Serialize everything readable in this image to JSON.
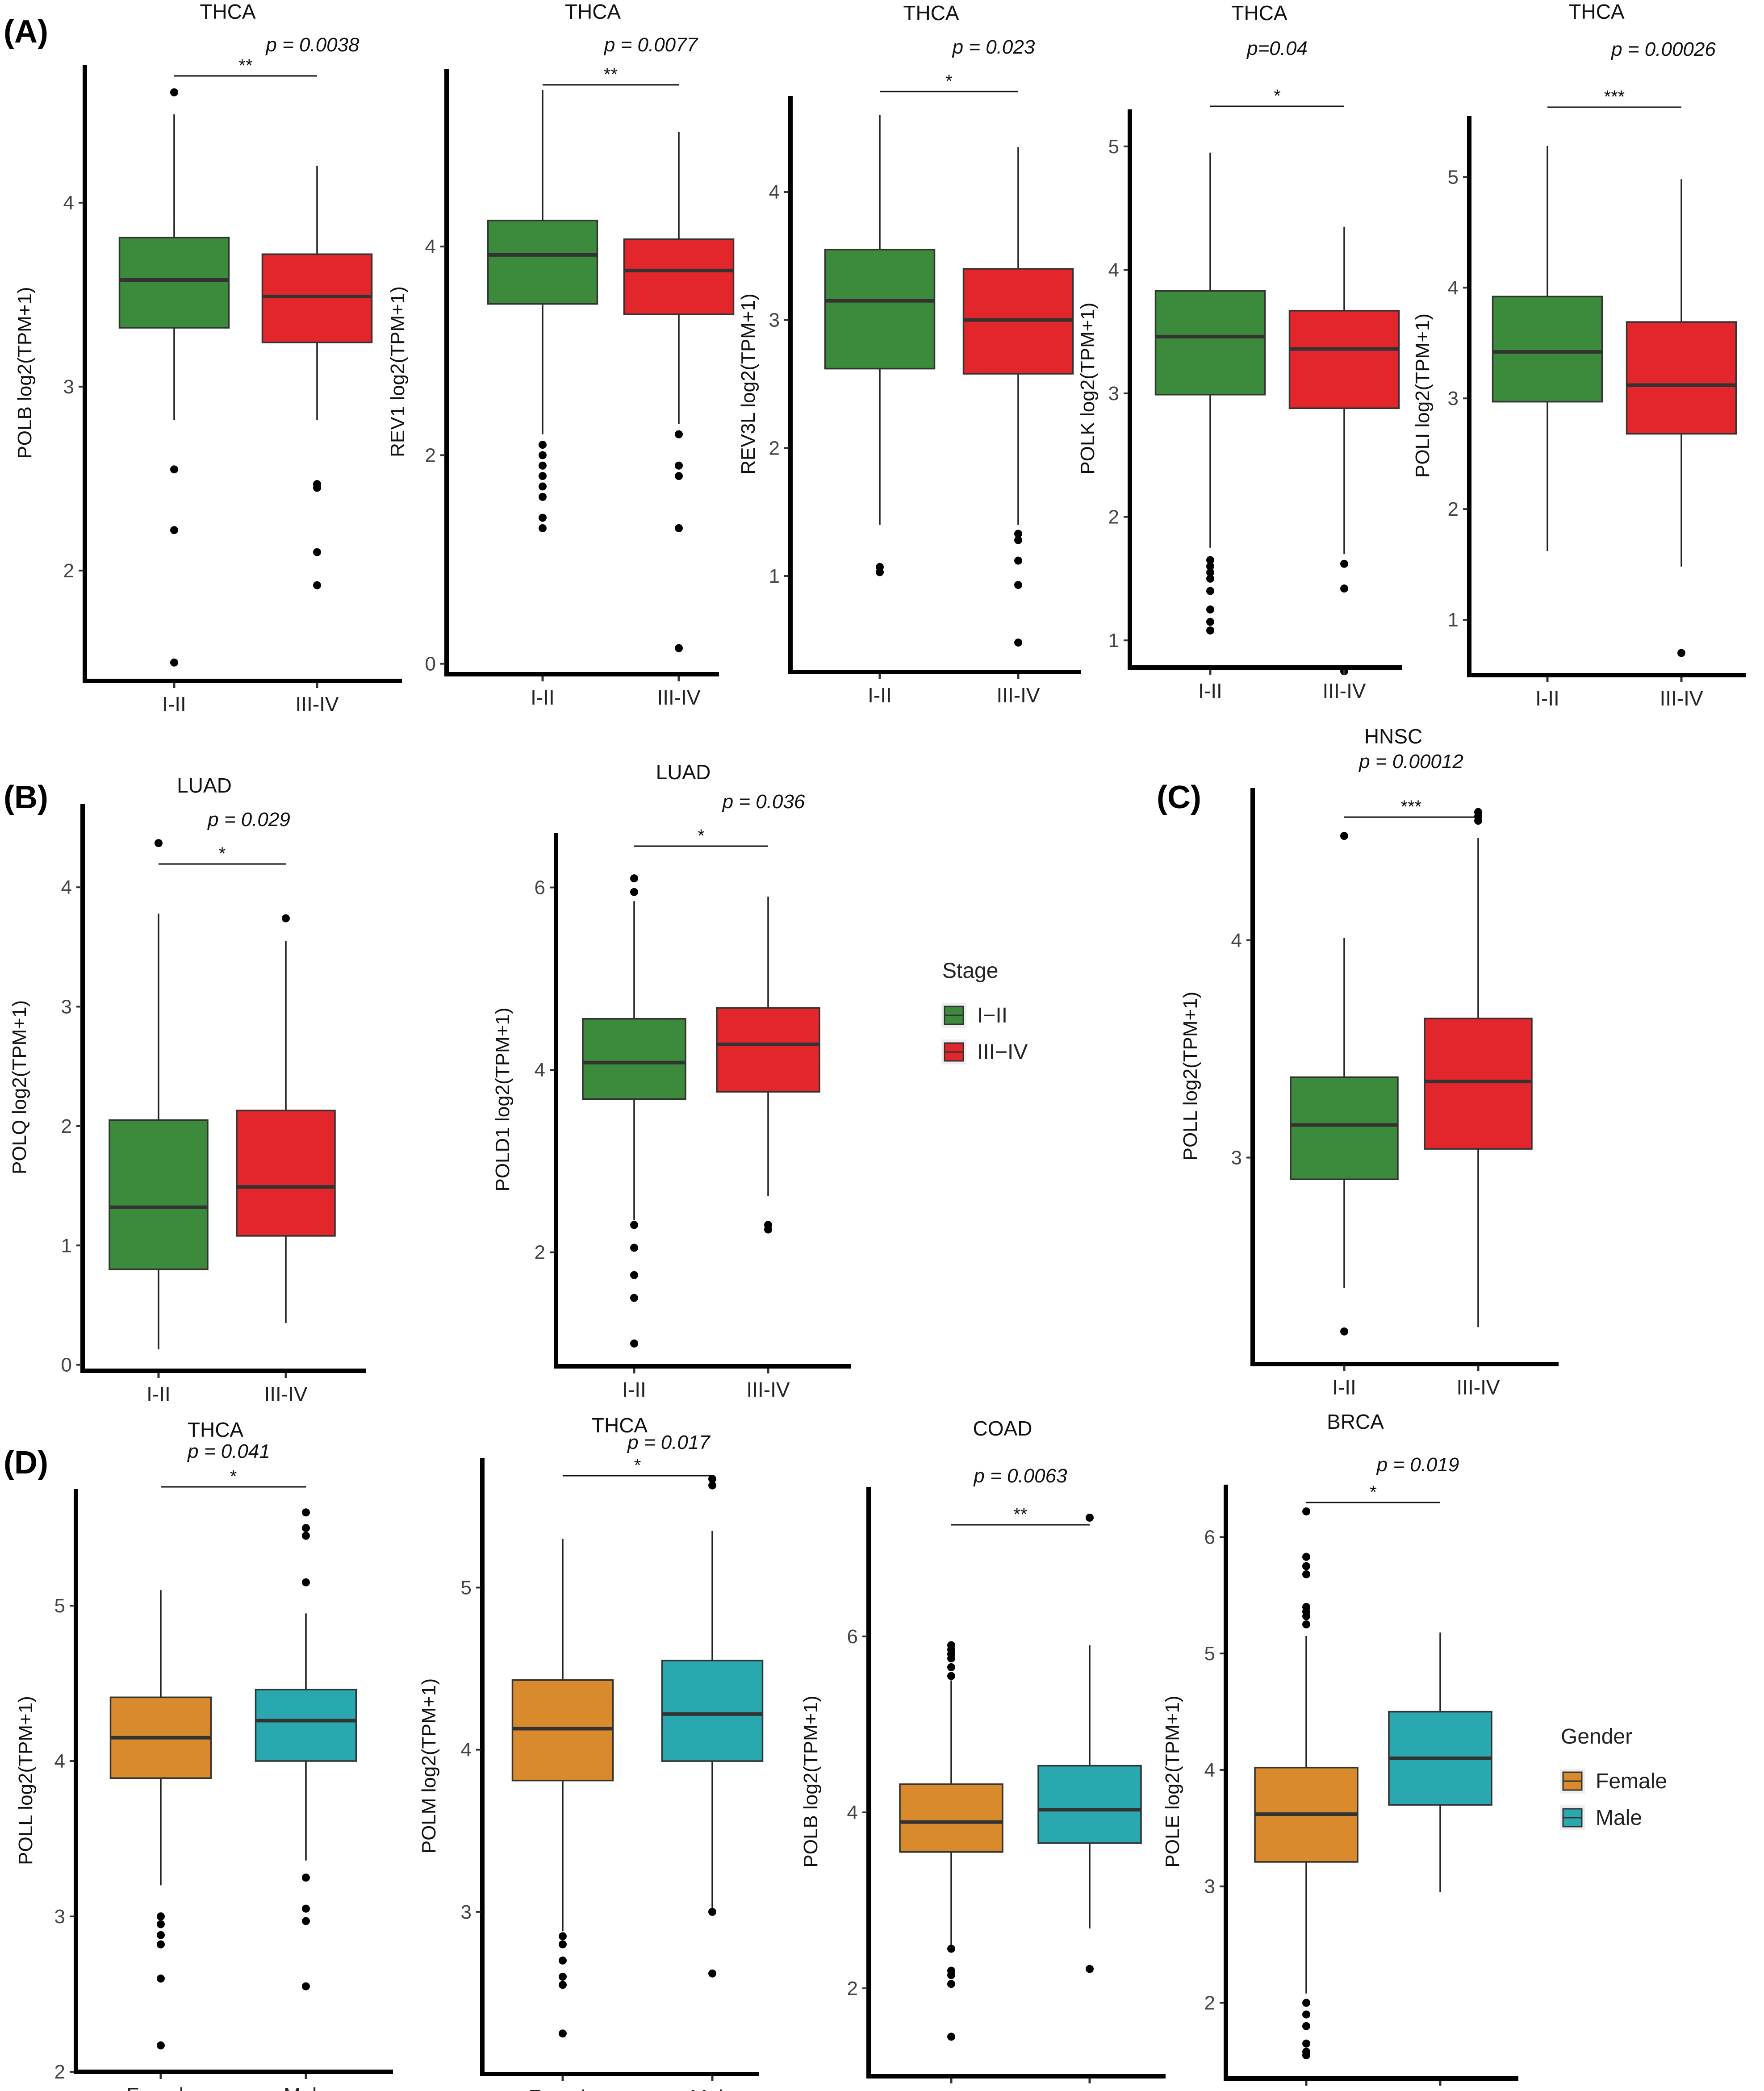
{
  "panel_labels": [
    "(A)",
    "(B)",
    "(C)",
    "(D)"
  ],
  "legends": [
    {
      "title": "Stage",
      "items": [
        {
          "label": "I−II",
          "color": "#3c8a3c"
        },
        {
          "label": "III−IV",
          "color": "#e3262b"
        }
      ]
    },
    {
      "title": "Gender",
      "items": [
        {
          "label": "Female",
          "color": "#d98a2c"
        },
        {
          "label": "Male",
          "color": "#2aa8b0"
        }
      ]
    }
  ],
  "chart_data": [
    {
      "type": "boxplot",
      "panel": "A",
      "title": "THCA",
      "pvalue": "p = 0.0038",
      "sig": "**",
      "ylabel": "POLB log2(TPM+1)",
      "ylim": [
        1.4,
        4.75
      ],
      "yticks": [
        2,
        3,
        4
      ],
      "categories": [
        "I-II",
        "III-IV"
      ],
      "colors": [
        "#3c8a3c",
        "#e3262b"
      ],
      "boxes": [
        {
          "min": 2.82,
          "q1": 3.32,
          "median": 3.58,
          "q3": 3.81,
          "max": 4.48,
          "outliers": [
            4.6,
            2.55,
            2.22,
            1.5
          ]
        },
        {
          "min": 2.82,
          "q1": 3.24,
          "median": 3.49,
          "q3": 3.72,
          "max": 4.2,
          "outliers": [
            2.47,
            2.45,
            2.1,
            1.92
          ]
        }
      ]
    },
    {
      "type": "boxplot",
      "panel": "A",
      "title": "THCA",
      "pvalue": "p = 0.0077",
      "sig": "**",
      "ylabel": "REV1 log2(TPM+1)",
      "ylim": [
        -0.1,
        5.7
      ],
      "yticks": [
        0,
        2,
        4
      ],
      "categories": [
        "I-II",
        "III-IV"
      ],
      "colors": [
        "#3c8a3c",
        "#e3262b"
      ],
      "boxes": [
        {
          "min": 2.2,
          "q1": 3.45,
          "median": 3.92,
          "q3": 4.25,
          "max": 5.5,
          "outliers": [
            2.1,
            2.0,
            1.9,
            1.8,
            1.7,
            1.6,
            1.4,
            1.3
          ]
        },
        {
          "min": 2.3,
          "q1": 3.35,
          "median": 3.77,
          "q3": 4.07,
          "max": 5.1,
          "outliers": [
            2.2,
            1.9,
            1.8,
            1.3,
            0.15
          ]
        }
      ]
    },
    {
      "type": "boxplot",
      "panel": "A",
      "title": "THCA",
      "pvalue": "p = 0.023",
      "sig": "*",
      "ylabel": "REV3L log2(TPM+1)",
      "ylim": [
        0.25,
        4.75
      ],
      "yticks": [
        1,
        2,
        3,
        4
      ],
      "categories": [
        "I-II",
        "III-IV"
      ],
      "colors": [
        "#3c8a3c",
        "#e3262b"
      ],
      "boxes": [
        {
          "min": 1.4,
          "q1": 2.62,
          "median": 3.15,
          "q3": 3.55,
          "max": 4.6,
          "outliers": [
            1.07,
            1.03
          ]
        },
        {
          "min": 1.4,
          "q1": 2.58,
          "median": 3.0,
          "q3": 3.4,
          "max": 4.35,
          "outliers": [
            1.33,
            1.28,
            1.12,
            0.93,
            0.48
          ]
        }
      ]
    },
    {
      "type": "boxplot",
      "panel": "A",
      "title": "THCA",
      "pvalue": "p=0.04",
      "sig": "*",
      "ylabel": "POLK log2(TPM+1)",
      "ylim": [
        0.78,
        5.3
      ],
      "yticks": [
        1,
        2,
        3,
        4,
        5
      ],
      "categories": [
        "I-II",
        "III-IV"
      ],
      "colors": [
        "#3c8a3c",
        "#e3262b"
      ],
      "boxes": [
        {
          "min": 1.75,
          "q1": 2.99,
          "median": 3.46,
          "q3": 3.83,
          "max": 4.95,
          "outliers": [
            1.65,
            1.6,
            1.55,
            1.5,
            1.4,
            1.25,
            1.15,
            1.08
          ]
        },
        {
          "min": 1.7,
          "q1": 2.88,
          "median": 3.36,
          "q3": 3.67,
          "max": 4.35,
          "outliers": [
            1.62,
            1.42,
            0.75
          ]
        }
      ]
    },
    {
      "type": "boxplot",
      "panel": "A",
      "title": "THCA",
      "pvalue": "p = 0.00026",
      "sig": "***",
      "ylabel": "POLI log2(TPM+1)",
      "ylim": [
        0.5,
        5.55
      ],
      "yticks": [
        1,
        2,
        3,
        4,
        5
      ],
      "categories": [
        "I-II",
        "III-IV"
      ],
      "colors": [
        "#3c8a3c",
        "#e3262b"
      ],
      "boxes": [
        {
          "min": 1.62,
          "q1": 2.97,
          "median": 3.42,
          "q3": 3.92,
          "max": 5.28,
          "outliers": []
        },
        {
          "min": 1.48,
          "q1": 2.68,
          "median": 3.12,
          "q3": 3.69,
          "max": 4.98,
          "outliers": [
            0.7
          ]
        }
      ]
    },
    {
      "type": "boxplot",
      "panel": "B",
      "title": "LUAD",
      "pvalue": "p = 0.029",
      "sig": "*",
      "ylabel": "POLQ log2(TPM+1)",
      "ylim": [
        -0.05,
        4.7
      ],
      "yticks": [
        0,
        1,
        2,
        3,
        4
      ],
      "categories": [
        "I-II",
        "III-IV"
      ],
      "colors": [
        "#3c8a3c",
        "#e3262b"
      ],
      "boxes": [
        {
          "min": 0.13,
          "q1": 0.8,
          "median": 1.32,
          "q3": 2.05,
          "max": 3.78,
          "outliers": [
            4.37
          ]
        },
        {
          "min": 0.35,
          "q1": 1.08,
          "median": 1.49,
          "q3": 2.13,
          "max": 3.55,
          "outliers": [
            3.74
          ]
        }
      ]
    },
    {
      "type": "boxplot",
      "panel": "B",
      "title": "LUAD",
      "pvalue": "p = 0.036",
      "sig": "*",
      "ylabel": "POLD1 log2(TPM+1)",
      "ylim": [
        0.75,
        6.6
      ],
      "yticks": [
        2,
        4,
        6
      ],
      "categories": [
        "I-II",
        "III-IV"
      ],
      "colors": [
        "#3c8a3c",
        "#e3262b"
      ],
      "boxes": [
        {
          "min": 2.35,
          "q1": 3.68,
          "median": 4.08,
          "q3": 4.56,
          "max": 5.85,
          "outliers": [
            6.1,
            5.95,
            2.3,
            2.05,
            1.75,
            1.5,
            1.0
          ]
        },
        {
          "min": 2.62,
          "q1": 3.76,
          "median": 4.28,
          "q3": 4.68,
          "max": 5.9,
          "outliers": [
            2.3,
            2.25
          ]
        }
      ]
    },
    {
      "type": "boxplot",
      "panel": "C",
      "title": "HNSC",
      "pvalue": "p = 0.00012",
      "sig": "***",
      "ylabel": "POLL log2(TPM+1)",
      "ylim": [
        2.05,
        4.7
      ],
      "yticks": [
        3,
        4
      ],
      "categories": [
        "I-II",
        "III-IV"
      ],
      "colors": [
        "#3c8a3c",
        "#e3262b"
      ],
      "boxes": [
        {
          "min": 2.4,
          "q1": 2.9,
          "median": 3.15,
          "q3": 3.37,
          "max": 4.01,
          "outliers": [
            4.48,
            2.2
          ]
        },
        {
          "min": 2.22,
          "q1": 3.04,
          "median": 3.35,
          "q3": 3.64,
          "max": 4.47,
          "outliers": [
            4.59,
            4.57,
            4.55
          ]
        }
      ]
    },
    {
      "type": "boxplot",
      "panel": "D",
      "title": "THCA",
      "pvalue": "p = 0.041",
      "sig": "*",
      "ylabel": "POLL log2(TPM+1)",
      "ylim": [
        2.0,
        5.75
      ],
      "yticks": [
        2,
        3,
        4,
        5
      ],
      "categories": [
        "Female",
        "Male"
      ],
      "colors": [
        "#d98a2c",
        "#2aa8b0"
      ],
      "boxes": [
        {
          "min": 3.2,
          "q1": 3.89,
          "median": 4.15,
          "q3": 4.41,
          "max": 5.1,
          "outliers": [
            3.0,
            2.95,
            2.88,
            2.82,
            2.6,
            2.17
          ]
        },
        {
          "min": 3.36,
          "q1": 4.0,
          "median": 4.26,
          "q3": 4.46,
          "max": 4.95,
          "outliers": [
            5.6,
            5.5,
            5.45,
            5.15,
            3.25,
            3.05,
            2.97,
            2.55
          ]
        }
      ]
    },
    {
      "type": "boxplot",
      "panel": "D",
      "title": "THCA",
      "pvalue": "p = 0.017",
      "sig": "*",
      "ylabel": "POLM log2(TPM+1)",
      "ylim": [
        2.0,
        5.8
      ],
      "yticks": [
        3,
        4,
        5
      ],
      "categories": [
        "Female",
        "Male"
      ],
      "colors": [
        "#d98a2c",
        "#2aa8b0"
      ],
      "boxes": [
        {
          "min": 2.88,
          "q1": 3.81,
          "median": 4.13,
          "q3": 4.43,
          "max": 5.3,
          "outliers": [
            2.85,
            2.8,
            2.7,
            2.6,
            2.55,
            2.25
          ]
        },
        {
          "min": 3.02,
          "q1": 3.93,
          "median": 4.22,
          "q3": 4.55,
          "max": 5.35,
          "outliers": [
            5.67,
            5.63,
            3.0,
            2.62
          ]
        }
      ]
    },
    {
      "type": "boxplot",
      "panel": "D",
      "title": "COAD",
      "pvalue": "p = 0.0063",
      "sig": "**",
      "ylabel": "POLB log2(TPM+1)",
      "ylim": [
        1.0,
        7.7
      ],
      "yticks": [
        2,
        4,
        6
      ],
      "categories": [
        "Female",
        "Male"
      ],
      "colors": [
        "#d98a2c",
        "#2aa8b0"
      ],
      "boxes": [
        {
          "min": 2.48,
          "q1": 3.55,
          "median": 3.89,
          "q3": 4.32,
          "max": 5.5,
          "outliers": [
            5.9,
            5.85,
            5.8,
            5.75,
            5.65,
            5.55,
            2.45,
            2.2,
            2.15,
            2.05,
            1.45
          ]
        },
        {
          "min": 2.68,
          "q1": 3.65,
          "median": 4.03,
          "q3": 4.53,
          "max": 5.9,
          "outliers": [
            7.35,
            2.22
          ]
        }
      ]
    },
    {
      "type": "boxplot",
      "panel": "D",
      "title": "BRCA",
      "pvalue": "p = 0.019",
      "sig": "*",
      "ylabel": "POLE log2(TPM+1)",
      "ylim": [
        1.35,
        6.45
      ],
      "yticks": [
        2,
        3,
        4,
        5,
        6
      ],
      "categories": [
        "Female",
        "Male"
      ],
      "colors": [
        "#d98a2c",
        "#2aa8b0"
      ],
      "boxes": [
        {
          "min": 2.08,
          "q1": 3.21,
          "median": 3.62,
          "q3": 4.02,
          "max": 5.15,
          "outliers": [
            6.22,
            5.83,
            5.75,
            5.68,
            5.4,
            5.36,
            5.32,
            5.25,
            2.0,
            1.9,
            1.8,
            1.65,
            1.58,
            1.55
          ]
        },
        {
          "min": 2.95,
          "q1": 3.7,
          "median": 4.1,
          "q3": 4.5,
          "max": 5.18,
          "outliers": []
        }
      ]
    }
  ]
}
